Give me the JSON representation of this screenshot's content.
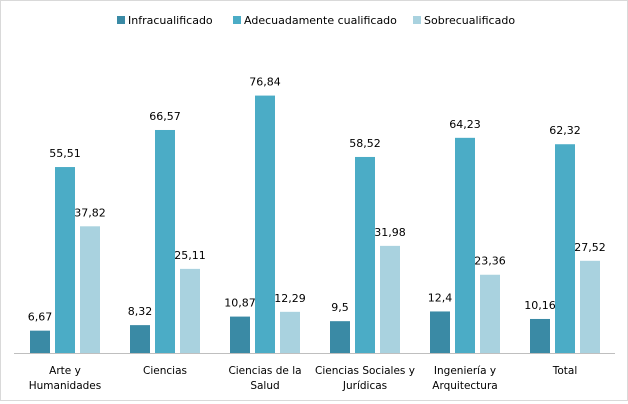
{
  "chart_data": {
    "type": "bar",
    "categories": [
      [
        "Arte y",
        "Humanidades"
      ],
      [
        "Ciencias"
      ],
      [
        "Ciencias de la",
        "Salud"
      ],
      [
        "Ciencias Sociales y",
        "Jurídicas"
      ],
      [
        "Ingeniería y",
        "Arquitectura"
      ],
      [
        "Total"
      ]
    ],
    "series": [
      {
        "name": "Infracualificado",
        "color": "#3a8aa5",
        "values": [
          6.67,
          8.32,
          10.87,
          9.5,
          12.4,
          10.16
        ],
        "labels": [
          "6,67",
          "8,32",
          "10,87",
          "9,5",
          "12,4",
          "10,16"
        ]
      },
      {
        "name": "Adecuadamente cualificado",
        "color": "#4bacc6",
        "values": [
          55.51,
          66.57,
          76.84,
          58.52,
          64.23,
          62.32
        ],
        "labels": [
          "55,51",
          "66,57",
          "76,84",
          "58,52",
          "64,23",
          "62,32"
        ]
      },
      {
        "name": "Sobrecualificado",
        "color": "#a9d2df",
        "values": [
          37.82,
          25.11,
          12.29,
          31.98,
          23.36,
          27.52
        ],
        "labels": [
          "37,82",
          "25,11",
          "12,29",
          "31,98",
          "23,36",
          "27,52"
        ]
      }
    ],
    "legend_position": "top",
    "grid": false,
    "ylim": [
      0,
      80
    ]
  }
}
